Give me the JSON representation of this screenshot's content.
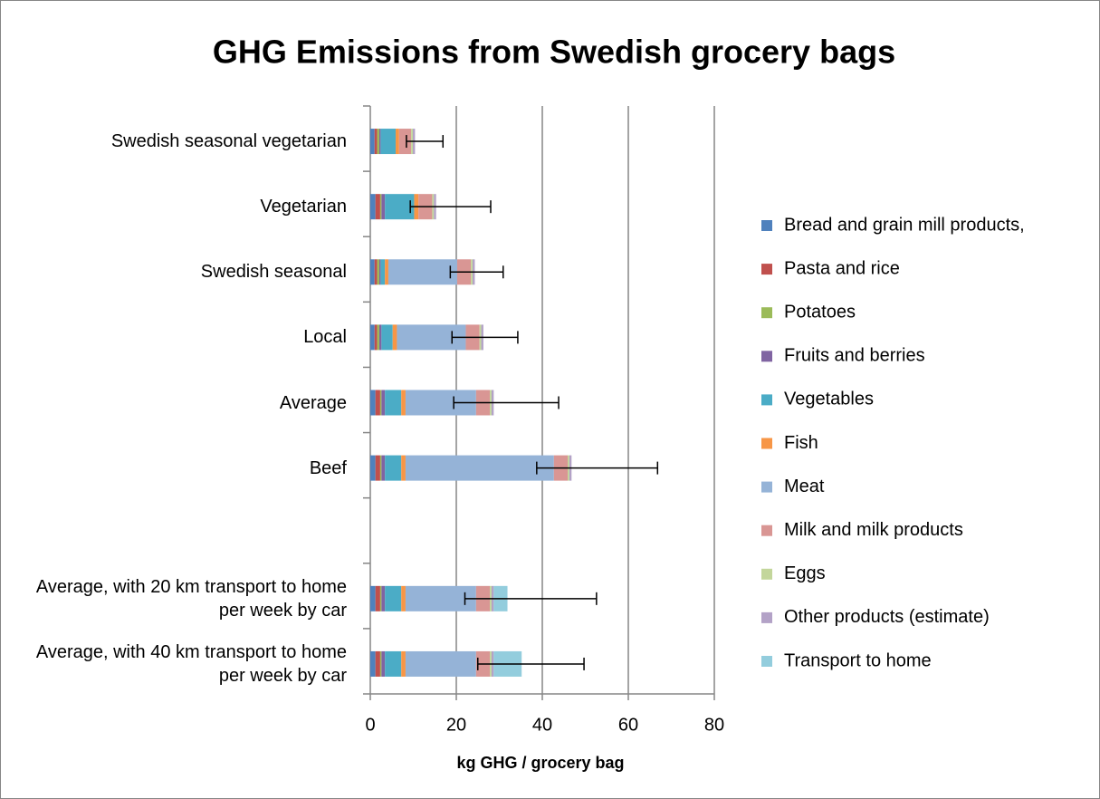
{
  "chart_data": {
    "type": "stacked_bar_horizontal",
    "title": "GHG Emissions from Swedish grocery bags",
    "x_label": "kg GHG / grocery bag",
    "categories": [
      "Swedish seasonal vegetarian",
      "Vegetarian",
      "Swedish seasonal",
      "Local",
      "Average",
      "Beef",
      null,
      "Average, with 20 km transport to home per week by car",
      "Average, with 40 km transport to home per week by car"
    ],
    "series": [
      {
        "name": "Bread and grain mill products,",
        "color": "#4f81bd",
        "values": [
          1.0,
          1.2,
          1.0,
          1.0,
          1.2,
          1.2,
          null,
          1.2,
          1.2
        ]
      },
      {
        "name": "Pasta and rice",
        "color": "#c0504d",
        "values": [
          0.6,
          1.1,
          0.6,
          0.6,
          1.1,
          1.1,
          null,
          1.1,
          1.1
        ]
      },
      {
        "name": "Potatoes",
        "color": "#9bbb59",
        "values": [
          0.5,
          0.3,
          0.5,
          0.5,
          0.3,
          0.3,
          null,
          0.3,
          0.3
        ]
      },
      {
        "name": "Fruits and berries",
        "color": "#8064a2",
        "values": [
          0.3,
          0.8,
          0.3,
          0.5,
          0.8,
          0.8,
          null,
          0.8,
          0.8
        ]
      },
      {
        "name": "Vegetables",
        "color": "#4bacc6",
        "values": [
          3.5,
          6.8,
          1.0,
          2.6,
          3.8,
          3.8,
          null,
          3.8,
          3.8
        ]
      },
      {
        "name": "Fish",
        "color": "#f79646",
        "values": [
          0.8,
          1.0,
          0.8,
          1.0,
          1.0,
          1.0,
          null,
          1.0,
          1.0
        ]
      },
      {
        "name": "Meat",
        "color": "#95b3d7",
        "values": [
          0,
          0,
          16,
          16,
          16.4,
          34.5,
          null,
          16.4,
          16.4
        ]
      },
      {
        "name": "Milk and milk products",
        "color": "#d99694",
        "values": [
          2.8,
          3.2,
          3.2,
          3.2,
          3.2,
          3.2,
          null,
          3.2,
          3.2
        ]
      },
      {
        "name": "Eggs",
        "color": "#c3d69b",
        "values": [
          0.4,
          0.4,
          0.4,
          0.4,
          0.4,
          0.4,
          null,
          0.4,
          0.4
        ]
      },
      {
        "name": "Other products (estimate)",
        "color": "#b3a2c7",
        "values": [
          0.5,
          0.5,
          0.5,
          0.5,
          0.5,
          0.5,
          null,
          0.5,
          0.5
        ]
      },
      {
        "name": "Transport to home",
        "color": "#93cddd",
        "values": [
          null,
          null,
          null,
          null,
          null,
          null,
          null,
          3.2,
          6.5
        ]
      }
    ],
    "errors": [
      [
        2.0,
        6.5
      ],
      [
        6.0,
        12.7
      ],
      [
        5.7,
        6.6
      ],
      [
        7.3,
        8.0
      ],
      [
        9.3,
        15.1
      ],
      [
        8.1,
        20.0
      ],
      null,
      [
        9.9,
        20.7
      ],
      [
        10.2,
        14.5
      ]
    ],
    "xlim": [
      0,
      80
    ],
    "xticks": [
      0,
      20,
      40,
      60,
      80
    ],
    "grid": true,
    "legend": "right"
  }
}
